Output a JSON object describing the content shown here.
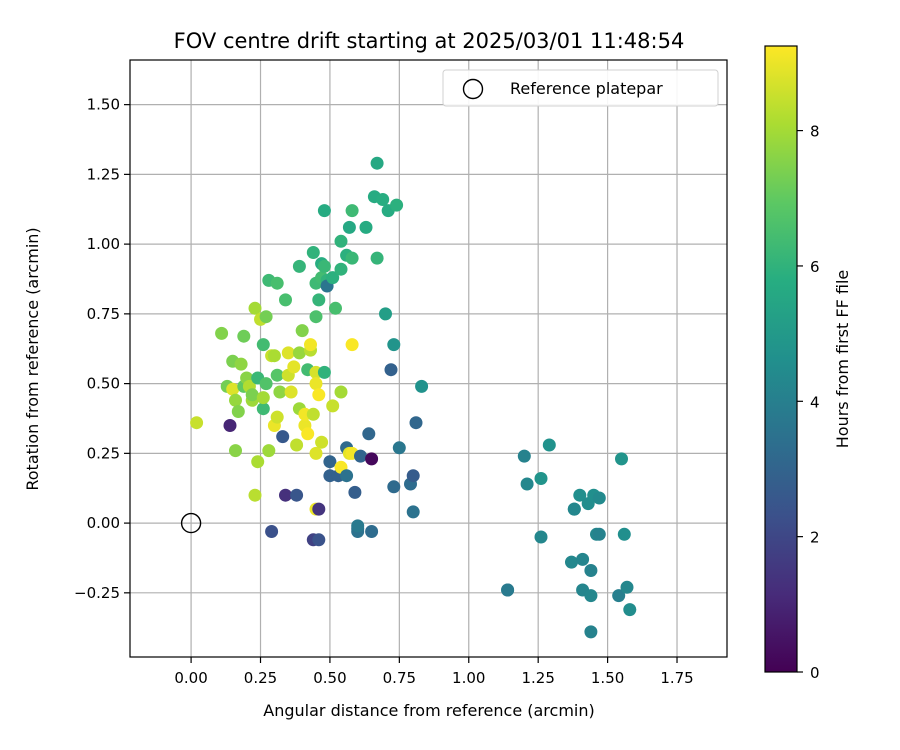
{
  "chart_data": {
    "type": "scatter",
    "title": "FOV centre drift starting at 2025/03/01 11:48:54",
    "xlabel": "Angular distance from reference (arcmin)",
    "ylabel": "Rotation from reference (arcmin)",
    "xlim": [
      -0.22,
      1.93
    ],
    "ylim": [
      -0.48,
      1.66
    ],
    "xticks": [
      "0.00",
      "0.25",
      "0.50",
      "0.75",
      "1.00",
      "1.25",
      "1.50",
      "1.75"
    ],
    "yticks": [
      "−0.25",
      "0.00",
      "0.25",
      "0.50",
      "0.75",
      "1.00",
      "1.25",
      "1.50"
    ],
    "grid": true,
    "legend": {
      "position": "top-right",
      "entries": [
        "Reference platepar"
      ]
    },
    "reference_point": {
      "x": 0.0,
      "y": 0.0,
      "marker": "hollow-circle"
    },
    "colorbar": {
      "label": "Hours from first FF file",
      "range": [
        0,
        9.25
      ],
      "ticks": [
        "0",
        "2",
        "4",
        "6",
        "8"
      ],
      "colormap": "viridis"
    },
    "series": [
      {
        "points": [
          [
            0.02,
            0.36,
            8.5
          ],
          [
            0.11,
            0.68,
            7.5
          ],
          [
            0.13,
            0.49,
            7.3
          ],
          [
            0.14,
            0.35,
            1.0
          ],
          [
            0.15,
            0.48,
            8.8
          ],
          [
            0.15,
            0.58,
            7.4
          ],
          [
            0.16,
            0.26,
            7.6
          ],
          [
            0.16,
            0.44,
            7.8
          ],
          [
            0.17,
            0.4,
            7.5
          ],
          [
            0.18,
            0.57,
            7.7
          ],
          [
            0.19,
            0.49,
            7.0
          ],
          [
            0.19,
            0.67,
            7.2
          ],
          [
            0.2,
            0.52,
            7.6
          ],
          [
            0.21,
            0.49,
            8.2
          ],
          [
            0.22,
            0.44,
            7.9
          ],
          [
            0.22,
            0.46,
            7.4
          ],
          [
            0.23,
            0.77,
            8.0
          ],
          [
            0.23,
            0.1,
            8.3
          ],
          [
            0.24,
            0.22,
            8.1
          ],
          [
            0.24,
            0.52,
            6.2
          ],
          [
            0.25,
            0.73,
            8.4
          ],
          [
            0.26,
            0.64,
            6.4
          ],
          [
            0.26,
            0.41,
            6.3
          ],
          [
            0.26,
            0.45,
            8.0
          ],
          [
            0.27,
            0.74,
            7.3
          ],
          [
            0.27,
            0.5,
            6.7
          ],
          [
            0.28,
            0.87,
            6.3
          ],
          [
            0.28,
            0.26,
            7.9
          ],
          [
            0.29,
            0.6,
            8.5
          ],
          [
            0.29,
            -0.03,
            2.3
          ],
          [
            0.3,
            0.6,
            8.1
          ],
          [
            0.3,
            0.35,
            9.0
          ],
          [
            0.31,
            0.86,
            6.5
          ],
          [
            0.31,
            0.53,
            6.8
          ],
          [
            0.31,
            0.38,
            8.6
          ],
          [
            0.32,
            0.47,
            7.7
          ],
          [
            0.33,
            0.31,
            2.6
          ],
          [
            0.34,
            0.1,
            1.3
          ],
          [
            0.34,
            0.8,
            6.5
          ],
          [
            0.35,
            0.61,
            8.8
          ],
          [
            0.35,
            0.53,
            8.6
          ],
          [
            0.36,
            0.47,
            8.8
          ],
          [
            0.37,
            0.56,
            8.9
          ],
          [
            0.38,
            0.28,
            8.4
          ],
          [
            0.38,
            0.1,
            2.5
          ],
          [
            0.39,
            0.61,
            7.8
          ],
          [
            0.39,
            0.41,
            7.9
          ],
          [
            0.39,
            0.92,
            6.1
          ],
          [
            0.4,
            0.69,
            7.5
          ],
          [
            0.41,
            0.35,
            9.0
          ],
          [
            0.41,
            0.39,
            9.1
          ],
          [
            0.42,
            0.32,
            9.2
          ],
          [
            0.42,
            0.55,
            6.4
          ],
          [
            0.43,
            0.62,
            8.3
          ],
          [
            0.43,
            0.64,
            9.1
          ],
          [
            0.44,
            0.39,
            8.4
          ],
          [
            0.44,
            -0.06,
            1.8
          ],
          [
            0.44,
            0.97,
            6.0
          ],
          [
            0.45,
            0.54,
            8.7
          ],
          [
            0.45,
            0.5,
            9.0
          ],
          [
            0.45,
            0.25,
            8.8
          ],
          [
            0.45,
            0.05,
            9.0
          ],
          [
            0.45,
            0.86,
            6.3
          ],
          [
            0.45,
            0.74,
            6.6
          ],
          [
            0.46,
            0.05,
            1.4
          ],
          [
            0.46,
            -0.06,
            2.4
          ],
          [
            0.46,
            0.46,
            9.2
          ],
          [
            0.46,
            0.8,
            6.1
          ],
          [
            0.47,
            0.93,
            5.8
          ],
          [
            0.47,
            0.29,
            8.6
          ],
          [
            0.47,
            0.88,
            6.4
          ],
          [
            0.48,
            0.54,
            6.0
          ],
          [
            0.48,
            0.92,
            6.2
          ],
          [
            0.48,
            1.12,
            5.7
          ],
          [
            0.49,
            0.87,
            6.0
          ],
          [
            0.49,
            0.85,
            3.6
          ],
          [
            0.5,
            0.17,
            2.9
          ],
          [
            0.5,
            0.22,
            3.0
          ],
          [
            0.51,
            0.42,
            8.5
          ],
          [
            0.51,
            0.88,
            5.9
          ],
          [
            0.52,
            0.77,
            6.5
          ],
          [
            0.53,
            0.17,
            2.9
          ],
          [
            0.54,
            1.01,
            6.0
          ],
          [
            0.54,
            0.91,
            6.0
          ],
          [
            0.54,
            0.47,
            8.0
          ],
          [
            0.54,
            0.2,
            9.2
          ],
          [
            0.56,
            0.17,
            3.5
          ],
          [
            0.56,
            0.27,
            3.2
          ],
          [
            0.56,
            0.96,
            5.9
          ],
          [
            0.57,
            1.06,
            5.6
          ],
          [
            0.57,
            0.25,
            8.9
          ],
          [
            0.58,
            0.64,
            9.2
          ],
          [
            0.58,
            1.12,
            6.3
          ],
          [
            0.58,
            0.95,
            6.2
          ],
          [
            0.58,
            0.25,
            9.1
          ],
          [
            0.59,
            0.11,
            2.8
          ],
          [
            0.6,
            -0.02,
            3.3
          ],
          [
            0.6,
            -0.03,
            3.5
          ],
          [
            0.6,
            -0.01,
            3.8
          ],
          [
            0.61,
            0.24,
            3.0
          ],
          [
            0.63,
            1.06,
            5.7
          ],
          [
            0.64,
            0.32,
            3.1
          ],
          [
            0.65,
            -0.03,
            3.3
          ],
          [
            0.65,
            0.23,
            0.2
          ],
          [
            0.66,
            1.17,
            5.7
          ],
          [
            0.67,
            1.29,
            5.6
          ],
          [
            0.67,
            0.95,
            6.1
          ],
          [
            0.69,
            1.16,
            5.8
          ],
          [
            0.7,
            0.75,
            5.2
          ],
          [
            0.71,
            1.12,
            5.7
          ],
          [
            0.72,
            0.55,
            2.9
          ],
          [
            0.73,
            0.13,
            3.2
          ],
          [
            0.73,
            0.64,
            4.8
          ],
          [
            0.74,
            1.14,
            5.9
          ],
          [
            0.75,
            0.27,
            3.7
          ],
          [
            0.79,
            0.14,
            3.3
          ],
          [
            0.8,
            0.04,
            3.5
          ],
          [
            0.8,
            0.17,
            2.7
          ],
          [
            0.81,
            0.36,
            3.1
          ],
          [
            0.83,
            0.49,
            4.7
          ],
          [
            1.14,
            -0.24,
            4.0
          ],
          [
            1.14,
            -0.24,
            3.8
          ],
          [
            1.2,
            0.24,
            4.1
          ],
          [
            1.21,
            0.14,
            4.3
          ],
          [
            1.26,
            0.16,
            4.8
          ],
          [
            1.26,
            -0.05,
            4.3
          ],
          [
            1.29,
            0.28,
            4.7
          ],
          [
            1.37,
            -0.14,
            4.3
          ],
          [
            1.38,
            0.05,
            4.5
          ],
          [
            1.38,
            0.05,
            4.3
          ],
          [
            1.4,
            0.1,
            4.6
          ],
          [
            1.41,
            -0.24,
            4.2
          ],
          [
            1.41,
            -0.13,
            4.2
          ],
          [
            1.43,
            0.07,
            4.5
          ],
          [
            1.44,
            -0.17,
            4.1
          ],
          [
            1.44,
            -0.26,
            4.3
          ],
          [
            1.44,
            -0.39,
            4.1
          ],
          [
            1.45,
            0.1,
            4.6
          ],
          [
            1.46,
            -0.04,
            4.3
          ],
          [
            1.47,
            -0.04,
            4.1
          ],
          [
            1.47,
            0.09,
            4.4
          ],
          [
            1.54,
            -0.26,
            4.0
          ],
          [
            1.55,
            0.23,
            4.8
          ],
          [
            1.56,
            -0.04,
            4.6
          ],
          [
            1.57,
            -0.23,
            4.3
          ],
          [
            1.58,
            -0.31,
            4.5
          ]
        ]
      }
    ]
  }
}
